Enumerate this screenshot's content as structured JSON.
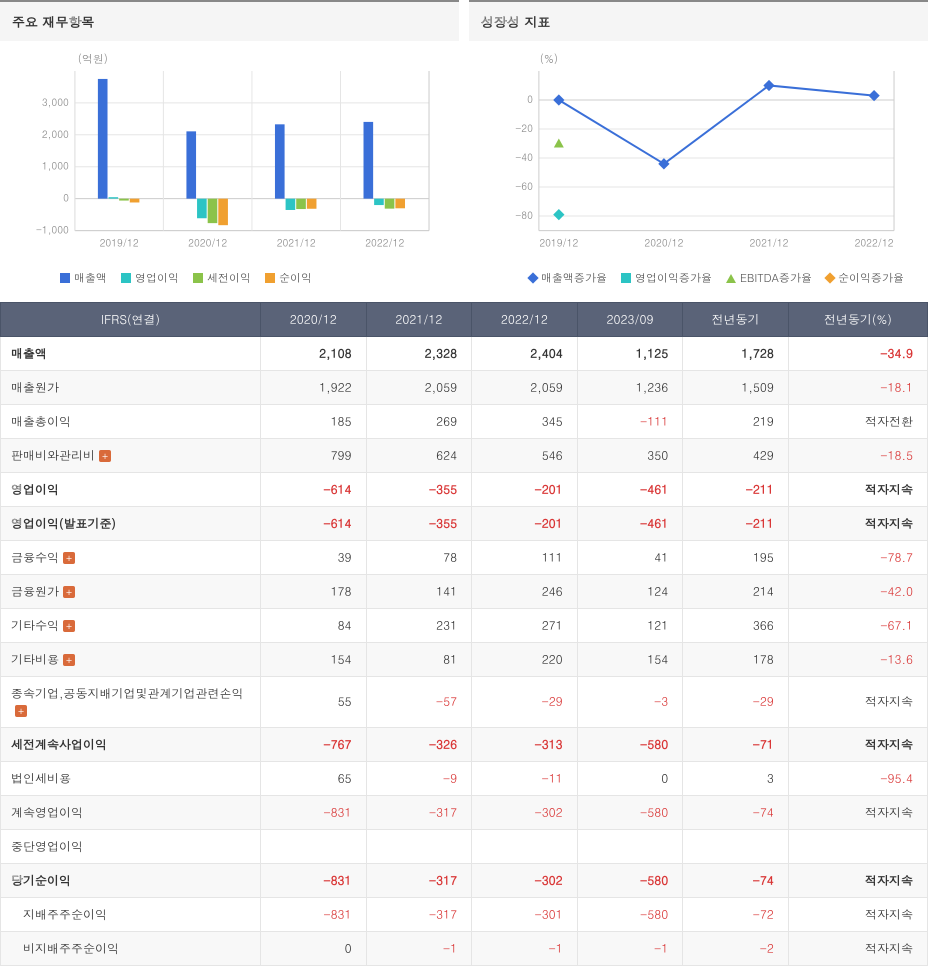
{
  "left_panel": {
    "title": "주요 재무항목",
    "chart": {
      "type": "bar",
      "y_unit_label": "(억원)",
      "ylim": [
        -1000,
        4000
      ],
      "yticks": [
        -1000,
        0,
        1000,
        2000,
        3000
      ],
      "xcategories": [
        "2019/12",
        "2020/12",
        "2021/12",
        "2022/12"
      ],
      "grid_color": "#e5e5e5",
      "axis_color": "#cccccc",
      "bg": "#ffffff",
      "tick_color": "#888888",
      "series": [
        {
          "name": "매출액",
          "color": "#3a6fd8",
          "values": [
            3750,
            2108,
            2328,
            2404
          ]
        },
        {
          "name": "영업이익",
          "color": "#2cc4c4",
          "values": [
            45,
            -614,
            -355,
            -201
          ]
        },
        {
          "name": "세전이익",
          "color": "#8bc34a",
          "values": [
            -60,
            -767,
            -326,
            -313
          ]
        },
        {
          "name": "순이익",
          "color": "#f0a030",
          "values": [
            -120,
            -831,
            -317,
            -302
          ]
        }
      ]
    },
    "legend": [
      {
        "label": "매출액",
        "color": "#3a6fd8"
      },
      {
        "label": "영업이익",
        "color": "#2cc4c4"
      },
      {
        "label": "세전이익",
        "color": "#8bc34a"
      },
      {
        "label": "순이익",
        "color": "#f0a030"
      }
    ]
  },
  "right_panel": {
    "title": "성장성 지표",
    "chart": {
      "type": "line",
      "y_unit_label": "(%)",
      "ylim": [
        -90,
        20
      ],
      "yticks": [
        -80,
        -60,
        -40,
        -20,
        0
      ],
      "xcategories": [
        "2019/12",
        "2020/12",
        "2021/12",
        "2022/12"
      ],
      "grid_color": "#e5e5e5",
      "axis_color": "#cccccc",
      "bg": "#ffffff",
      "tick_color": "#888888",
      "primary_series": {
        "name": "매출액증가율",
        "color": "#3a6fd8",
        "marker": "diamond",
        "values": [
          0,
          -44,
          10,
          3
        ]
      },
      "points": [
        {
          "name": "순이익증가율",
          "color": "#2cc4c4",
          "marker": "diamond",
          "x_index": 0,
          "y": -79
        },
        {
          "name": "EBITDA증가율",
          "color": "#8bc34a",
          "marker": "triangle",
          "x_index": 0,
          "y": -30
        }
      ]
    },
    "legend": [
      {
        "label": "매출액증가율",
        "color": "#3a6fd8",
        "marker": "diamond"
      },
      {
        "label": "영업이익증가율",
        "color": "#2cc4c4",
        "marker": "square"
      },
      {
        "label": "EBITDA증가율",
        "color": "#8bc34a",
        "marker": "triangle"
      },
      {
        "label": "순이익증가율",
        "color": "#f0a030",
        "marker": "diamond"
      }
    ]
  },
  "table": {
    "header_bg": "#5a6378",
    "header_color": "#ffffff",
    "neg_color": "#d93636",
    "columns": [
      "IFRS(연결)",
      "2020/12",
      "2021/12",
      "2022/12",
      "2023/09",
      "전년동기",
      "전년동기(%)"
    ],
    "rows": [
      {
        "label": "매출액",
        "bold": true,
        "expand": false,
        "cells": [
          "2,108",
          "2,328",
          "2,404",
          "1,125",
          "1,728",
          "-34.9"
        ],
        "neg": [
          false,
          false,
          false,
          false,
          false,
          true
        ]
      },
      {
        "label": "매출원가",
        "bold": false,
        "expand": false,
        "cells": [
          "1,922",
          "2,059",
          "2,059",
          "1,236",
          "1,509",
          "-18.1"
        ],
        "neg": [
          false,
          false,
          false,
          false,
          false,
          true
        ]
      },
      {
        "label": "매출총이익",
        "bold": false,
        "expand": false,
        "cells": [
          "185",
          "269",
          "345",
          "-111",
          "219",
          "적자전환"
        ],
        "neg": [
          false,
          false,
          false,
          true,
          false,
          false
        ]
      },
      {
        "label": "판매비와관리비",
        "bold": false,
        "expand": true,
        "cells": [
          "799",
          "624",
          "546",
          "350",
          "429",
          "-18.5"
        ],
        "neg": [
          false,
          false,
          false,
          false,
          false,
          true
        ]
      },
      {
        "label": "영업이익",
        "bold": true,
        "expand": false,
        "cells": [
          "-614",
          "-355",
          "-201",
          "-461",
          "-211",
          "적자지속"
        ],
        "neg": [
          true,
          true,
          true,
          true,
          true,
          false
        ]
      },
      {
        "label": "영업이익(발표기준)",
        "bold": true,
        "expand": false,
        "cells": [
          "-614",
          "-355",
          "-201",
          "-461",
          "-211",
          "적자지속"
        ],
        "neg": [
          true,
          true,
          true,
          true,
          true,
          false
        ]
      },
      {
        "label": "금융수익",
        "bold": false,
        "expand": true,
        "cells": [
          "39",
          "78",
          "111",
          "41",
          "195",
          "-78.7"
        ],
        "neg": [
          false,
          false,
          false,
          false,
          false,
          true
        ]
      },
      {
        "label": "금융원가",
        "bold": false,
        "expand": true,
        "cells": [
          "178",
          "141",
          "246",
          "124",
          "214",
          "-42.0"
        ],
        "neg": [
          false,
          false,
          false,
          false,
          false,
          true
        ]
      },
      {
        "label": "기타수익",
        "bold": false,
        "expand": true,
        "cells": [
          "84",
          "231",
          "271",
          "121",
          "366",
          "-67.1"
        ],
        "neg": [
          false,
          false,
          false,
          false,
          false,
          true
        ]
      },
      {
        "label": "기타비용",
        "bold": false,
        "expand": true,
        "cells": [
          "154",
          "81",
          "220",
          "154",
          "178",
          "-13.6"
        ],
        "neg": [
          false,
          false,
          false,
          false,
          false,
          true
        ]
      },
      {
        "label": "종속기업,공동지배기업및관계기업관련손익",
        "bold": false,
        "expand": true,
        "cells": [
          "55",
          "-57",
          "-29",
          "-3",
          "-29",
          "적자지속"
        ],
        "neg": [
          false,
          true,
          true,
          true,
          true,
          false
        ]
      },
      {
        "label": "세전계속사업이익",
        "bold": true,
        "expand": false,
        "cells": [
          "-767",
          "-326",
          "-313",
          "-580",
          "-71",
          "적자지속"
        ],
        "neg": [
          true,
          true,
          true,
          true,
          true,
          false
        ]
      },
      {
        "label": "법인세비용",
        "bold": false,
        "expand": false,
        "cells": [
          "65",
          "-9",
          "-11",
          "0",
          "3",
          "-95.4"
        ],
        "neg": [
          false,
          true,
          true,
          false,
          false,
          true
        ]
      },
      {
        "label": "계속영업이익",
        "bold": false,
        "expand": false,
        "cells": [
          "-831",
          "-317",
          "-302",
          "-580",
          "-74",
          "적자지속"
        ],
        "neg": [
          true,
          true,
          true,
          true,
          true,
          false
        ]
      },
      {
        "label": "중단영업이익",
        "bold": false,
        "expand": false,
        "cells": [
          "",
          "",
          "",
          "",
          "",
          ""
        ],
        "neg": [
          false,
          false,
          false,
          false,
          false,
          false
        ]
      },
      {
        "label": "당기순이익",
        "bold": true,
        "expand": false,
        "cells": [
          "-831",
          "-317",
          "-302",
          "-580",
          "-74",
          "적자지속"
        ],
        "neg": [
          true,
          true,
          true,
          true,
          true,
          false
        ]
      },
      {
        "label": "  지배주주순이익",
        "bold": false,
        "expand": false,
        "cells": [
          "-831",
          "-317",
          "-301",
          "-580",
          "-72",
          "적자지속"
        ],
        "neg": [
          true,
          true,
          true,
          true,
          true,
          false
        ]
      },
      {
        "label": "  비지배주주순이익",
        "bold": false,
        "expand": false,
        "cells": [
          "0",
          "-1",
          "-1",
          "-1",
          "-2",
          "적자지속"
        ],
        "neg": [
          false,
          true,
          true,
          true,
          true,
          false
        ]
      }
    ]
  }
}
